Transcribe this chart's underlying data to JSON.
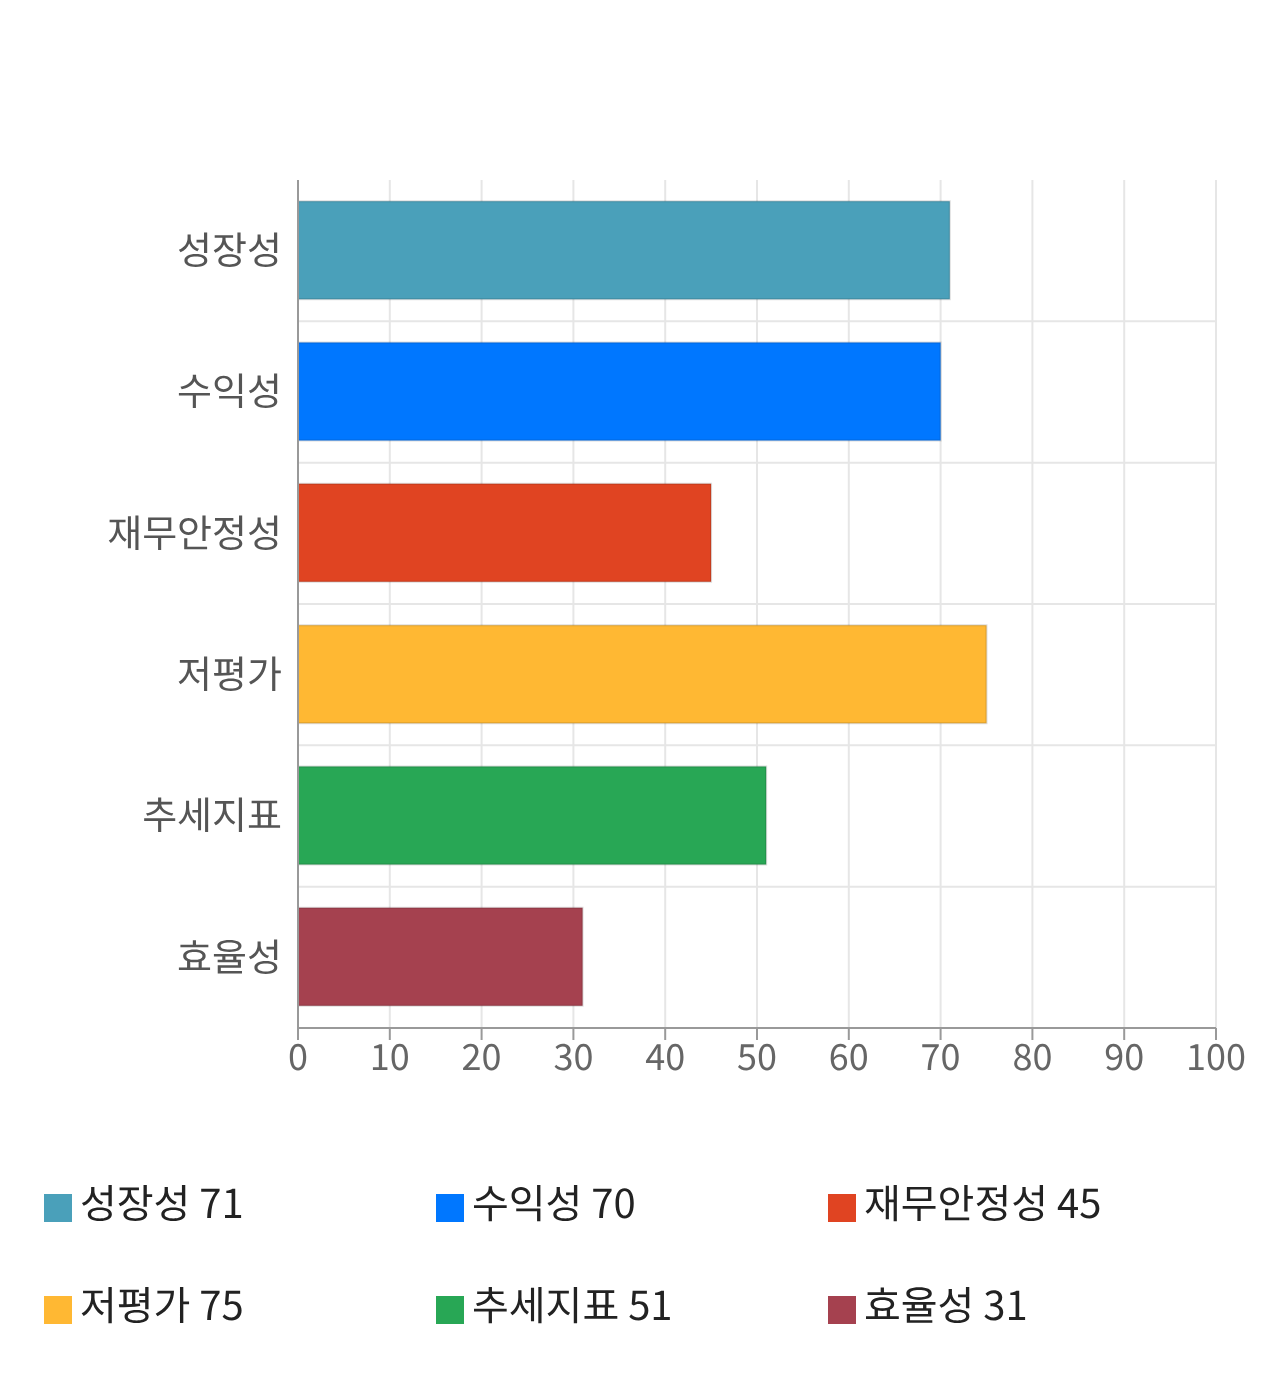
{
  "chart_data": {
    "type": "bar",
    "orientation": "horizontal",
    "stacked": true,
    "categories": [
      "성장성",
      "수익성",
      "재무안정성",
      "저평가",
      "추세지표",
      "효율성"
    ],
    "series": [
      {
        "name": "성장성 71",
        "color": "#4aa0ba",
        "values": [
          71,
          null,
          null,
          null,
          null,
          null
        ]
      },
      {
        "name": "수익성 70",
        "color": "#0077ff",
        "values": [
          null,
          70,
          null,
          null,
          null,
          null
        ]
      },
      {
        "name": "재무안정성 45",
        "color": "#e04422",
        "values": [
          null,
          null,
          45,
          null,
          null,
          null
        ]
      },
      {
        "name": "저평가 75",
        "color": "#ffb833",
        "values": [
          null,
          null,
          null,
          75,
          null,
          null
        ]
      },
      {
        "name": "추세지표 51",
        "color": "#28a755",
        "values": [
          null,
          null,
          null,
          null,
          51,
          null
        ]
      },
      {
        "name": "효율성 31",
        "color": "#a5414f",
        "values": [
          null,
          null,
          null,
          null,
          null,
          31
        ]
      }
    ],
    "xlim": [
      0,
      100
    ],
    "xticks": [
      0,
      10,
      20,
      30,
      40,
      50,
      60,
      70,
      80,
      90,
      100
    ],
    "grid": true,
    "legend": "bottom"
  }
}
